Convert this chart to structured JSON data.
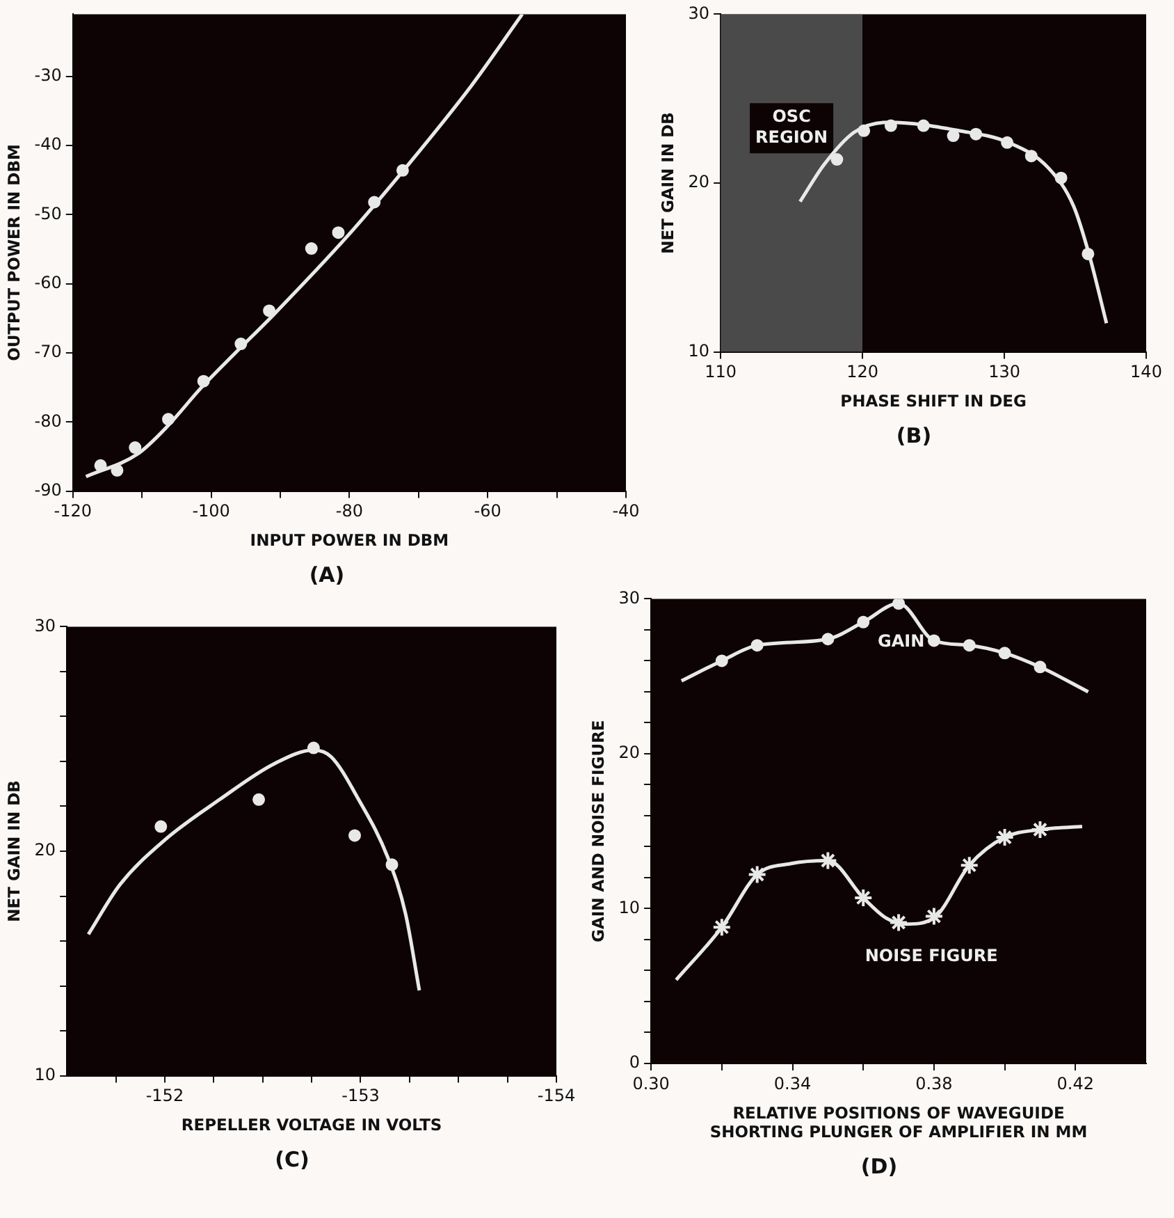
{
  "chart_data": [
    {
      "type": "scatter",
      "xlabel": "INPUT POWER IN DBM",
      "ylabel": "OUTPUT POWER IN DBM",
      "annotations": [
        "(A)"
      ],
      "xlim": [
        -120,
        -40
      ],
      "ylim": [
        -90,
        -21
      ],
      "xticks": [
        -120,
        {
          "value": -110,
          "label": null
        },
        -100,
        {
          "value": -90,
          "label": null
        },
        -80,
        {
          "value": -70,
          "label": null
        },
        -60,
        {
          "value": -50,
          "label": null
        },
        -40
      ],
      "yticks": [
        -90,
        -80,
        -70,
        -60,
        -50,
        -40,
        -30
      ],
      "series": [
        {
          "type": "line",
          "marker": "none",
          "color": "#e8e8e8",
          "x": [
            -118.1,
            -110.6,
            -106.4,
            -101.4,
            -96.5,
            -90.8,
            -80.1,
            -71.6,
            -62.4,
            -55
          ],
          "values": [
            -87.9,
            -84.6,
            -80.7,
            -75,
            -70,
            -64.3,
            -52.9,
            -42.9,
            -31.4,
            -21
          ]
        },
        {
          "type": "scatter",
          "marker": "circle",
          "color": "#e8e8e8",
          "x": [
            -116,
            -113.6,
            -111,
            -106.2,
            -101.1,
            -95.7,
            -91.6,
            -85.5,
            -81.6,
            -76.4,
            -72.3
          ],
          "values": [
            -86.3,
            -87,
            -83.7,
            -79.6,
            -74.1,
            -68.7,
            -63.9,
            -54.9,
            -52.6,
            -48.2,
            -43.6
          ]
        }
      ]
    },
    {
      "type": "scatter",
      "xlabel": "PHASE SHIFT IN DEG",
      "ylabel": "NET GAIN IN DB",
      "annotations": [
        "(B)"
      ],
      "xlim": [
        110,
        140
      ],
      "ylim": [
        10,
        30
      ],
      "xticks": [
        110,
        120,
        130,
        140
      ],
      "yticks": [
        10,
        20,
        30
      ],
      "bands": [
        {
          "axis": "x",
          "from": 110,
          "to": 120,
          "label": "OSC REGION"
        }
      ],
      "series": [
        {
          "type": "line",
          "marker": "none",
          "color": "#e8e8e8",
          "x": [
            115.6,
            117.3,
            119.4,
            121.9,
            126.8,
            130.3,
            133.1,
            134.9,
            136,
            137.2
          ],
          "values": [
            18.9,
            21.1,
            23,
            23.6,
            23.1,
            22.4,
            20.9,
            18.6,
            15.7,
            11.7
          ]
        },
        {
          "type": "scatter",
          "marker": "circle",
          "color": "#e8e8e8",
          "x": [
            118.2,
            120.1,
            122,
            124.3,
            126.4,
            128,
            130.2,
            131.9,
            134,
            135.9
          ],
          "values": [
            21.4,
            23.1,
            23.4,
            23.4,
            22.8,
            22.9,
            22.4,
            21.6,
            20.3,
            15.8
          ]
        }
      ]
    },
    {
      "type": "scatter",
      "xlabel": "REPELLER VOLTAGE IN VOLTS",
      "ylabel": "NET GAIN IN DB",
      "annotations": [
        "(C)"
      ],
      "xlim": [
        -151.5,
        -154
      ],
      "ylim": [
        10,
        30
      ],
      "xticks": [
        {
          "value": -151.75,
          "label": null
        },
        -152,
        {
          "value": -152.25,
          "label": null
        },
        {
          "value": -152.5,
          "label": null
        },
        {
          "value": -152.75,
          "label": null
        },
        -153,
        {
          "value": -153.25,
          "label": null
        },
        {
          "value": -153.5,
          "label": null
        },
        {
          "value": -153.75,
          "label": null
        },
        -154
      ],
      "yticks": [
        10,
        {
          "value": 12,
          "label": null
        },
        {
          "value": 14,
          "label": null
        },
        {
          "value": 16,
          "label": null
        },
        {
          "value": 18,
          "label": null
        },
        20,
        {
          "value": 22,
          "label": null
        },
        {
          "value": 24,
          "label": null
        },
        {
          "value": 26,
          "label": null
        },
        {
          "value": 28,
          "label": null
        },
        30
      ],
      "series": [
        {
          "type": "line",
          "marker": "none",
          "color": "#e8e8e8",
          "x": [
            -151.61,
            -151.77,
            -152,
            -152.28,
            -152.56,
            -152.76,
            -152.85,
            -152.99,
            -153.14,
            -153.23,
            -153.3
          ],
          "values": [
            16.3,
            18.5,
            20.5,
            22.3,
            23.9,
            24.5,
            24.2,
            22.3,
            19.7,
            17.2,
            13.8
          ]
        },
        {
          "type": "scatter",
          "marker": "circle",
          "color": "#e8e8e8",
          "x": [
            -151.98,
            -152.48,
            -152.76,
            -152.97,
            -153.16
          ],
          "values": [
            21.1,
            22.3,
            24.6,
            20.7,
            19.4
          ]
        }
      ]
    },
    {
      "type": "scatter",
      "xlabel": "RELATIVE POSITIONS OF WAVEGUIDE\nSHORTING PLUNGER OF AMPLIFIER IN MM",
      "ylabel": "GAIN AND NOISE FIGURE",
      "annotations": [
        "(D)"
      ],
      "xlim": [
        0.3,
        0.44
      ],
      "ylim": [
        0,
        30
      ],
      "xticks": [
        {
          "value": 0.3,
          "label": "0.30"
        },
        {
          "value": 0.32,
          "label": null
        },
        0.34,
        {
          "value": 0.36,
          "label": null
        },
        0.38,
        {
          "value": 0.4,
          "label": null
        },
        0.42
      ],
      "yticks": [
        0,
        {
          "value": 2,
          "label": null
        },
        {
          "value": 4,
          "label": null
        },
        {
          "value": 6,
          "label": null
        },
        {
          "value": 8,
          "label": null
        },
        10,
        {
          "value": 12,
          "label": null
        },
        {
          "value": 14,
          "label": null
        },
        {
          "value": 16,
          "label": null
        },
        {
          "value": 18,
          "label": null
        },
        20,
        {
          "value": 22,
          "label": null
        },
        {
          "value": 24,
          "label": null
        },
        {
          "value": 26,
          "label": null
        },
        {
          "value": 28,
          "label": null
        },
        30
      ],
      "series": [
        {
          "name": "GAIN",
          "type": "line",
          "marker": "none",
          "color": "#e8e8e8",
          "x": [
            0.3086,
            0.32,
            0.33,
            0.35,
            0.36,
            0.37,
            0.38,
            0.39,
            0.4,
            0.41,
            0.4236
          ],
          "values": [
            24.7,
            26,
            27,
            27.4,
            28.5,
            29.7,
            27.3,
            27,
            26.5,
            25.6,
            24
          ]
        },
        {
          "type": "scatter",
          "marker": "circle",
          "color": "#e8e8e8",
          "x": [
            0.32,
            0.33,
            0.35,
            0.36,
            0.37,
            0.38,
            0.39,
            0.4,
            0.41
          ],
          "values": [
            26,
            27,
            27.4,
            28.5,
            29.7,
            27.3,
            27,
            26.5,
            25.6
          ]
        },
        {
          "name": "NOISE FIGURE",
          "type": "line",
          "marker": "none",
          "color": "#e8e8e8",
          "x": [
            0.3071,
            0.32,
            0.33,
            0.3393,
            0.35,
            0.36,
            0.3664,
            0.3721,
            0.38,
            0.39,
            0.4,
            0.41,
            0.4219
          ],
          "values": [
            5.4,
            8.8,
            12.2,
            12.9,
            13.1,
            10.7,
            9.4,
            9,
            9.4,
            12.8,
            14.6,
            15.1,
            15.3
          ]
        },
        {
          "type": "scatter",
          "marker": "cross",
          "color": "#e8e8e8",
          "x": [
            0.32,
            0.33,
            0.35,
            0.36,
            0.37,
            0.38,
            0.39,
            0.4,
            0.41
          ],
          "values": [
            8.8,
            12.2,
            13.1,
            10.7,
            9.1,
            9.5,
            12.8,
            14.6,
            15.1
          ]
        }
      ]
    }
  ]
}
